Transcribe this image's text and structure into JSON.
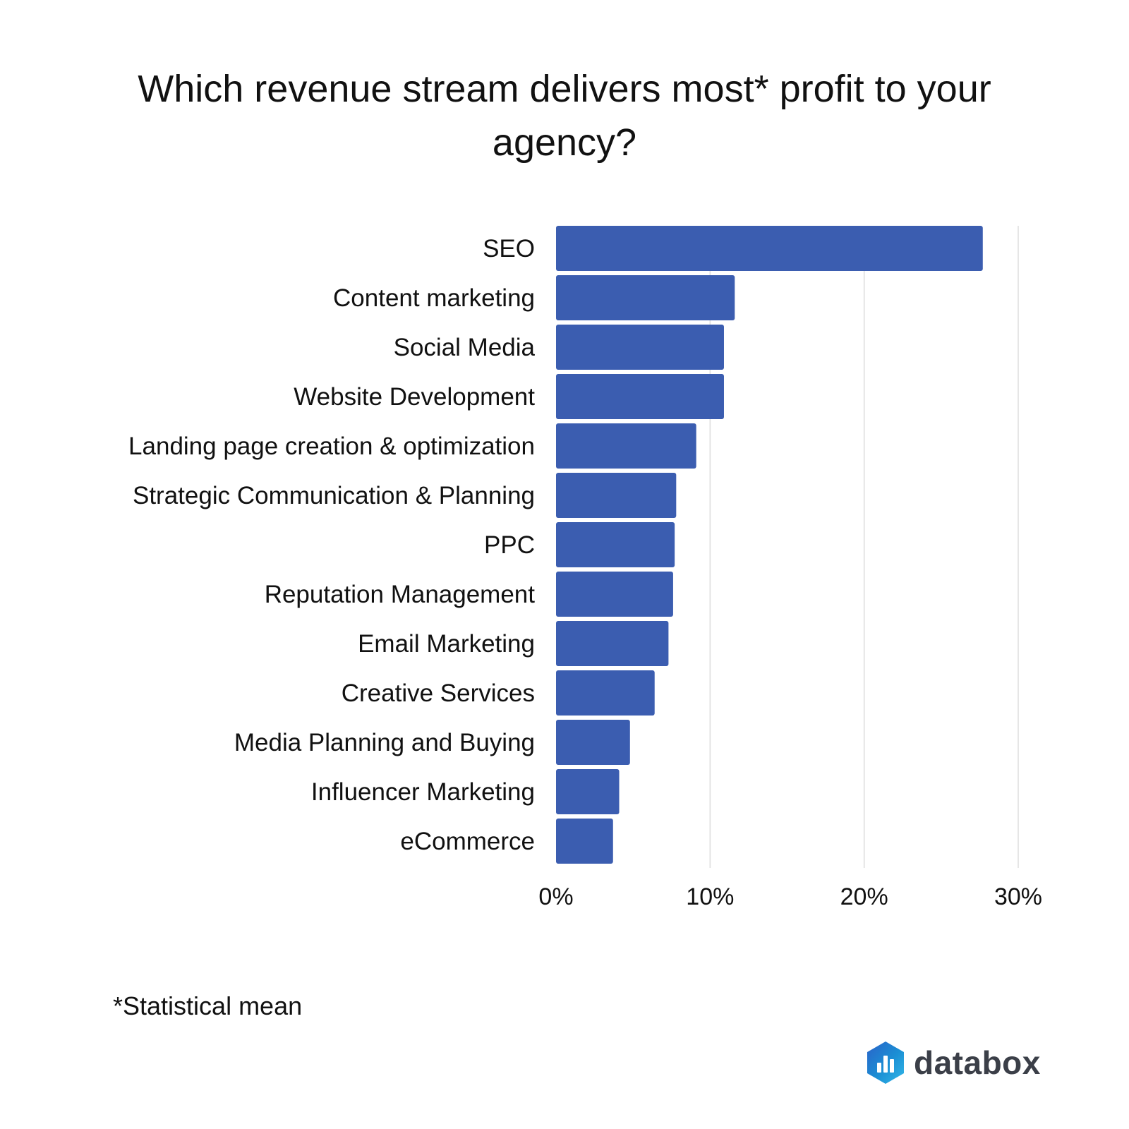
{
  "chart_data": {
    "type": "bar",
    "orientation": "horizontal",
    "title": "Which revenue stream delivers most* profit to your agency?",
    "categories": [
      "SEO",
      "Content marketing",
      "Social Media",
      "Website Development",
      "Landing page creation & optimization",
      "Strategic Communication & Planning",
      "PPC",
      "Reputation Management",
      "Email Marketing",
      "Creative Services",
      "Media Planning and Buying",
      "Influencer Marketing",
      "eCommerce"
    ],
    "values": [
      27.7,
      11.6,
      10.9,
      10.9,
      9.1,
      7.8,
      7.7,
      7.6,
      7.3,
      6.4,
      4.8,
      4.1,
      3.7
    ],
    "unit": "%",
    "xlim": [
      0,
      30
    ],
    "x_ticks": [
      "0%",
      "10%",
      "20%",
      "30%"
    ],
    "grid": "vertical",
    "bar_color": "#3b5db0",
    "grid_color": "#dddddd"
  },
  "footnote": "*Statistical mean",
  "brand": {
    "name": "databox",
    "icon": "databox-logo-icon",
    "colors": [
      "#2a62c9",
      "#1b8fd4",
      "#33b8e8"
    ]
  }
}
